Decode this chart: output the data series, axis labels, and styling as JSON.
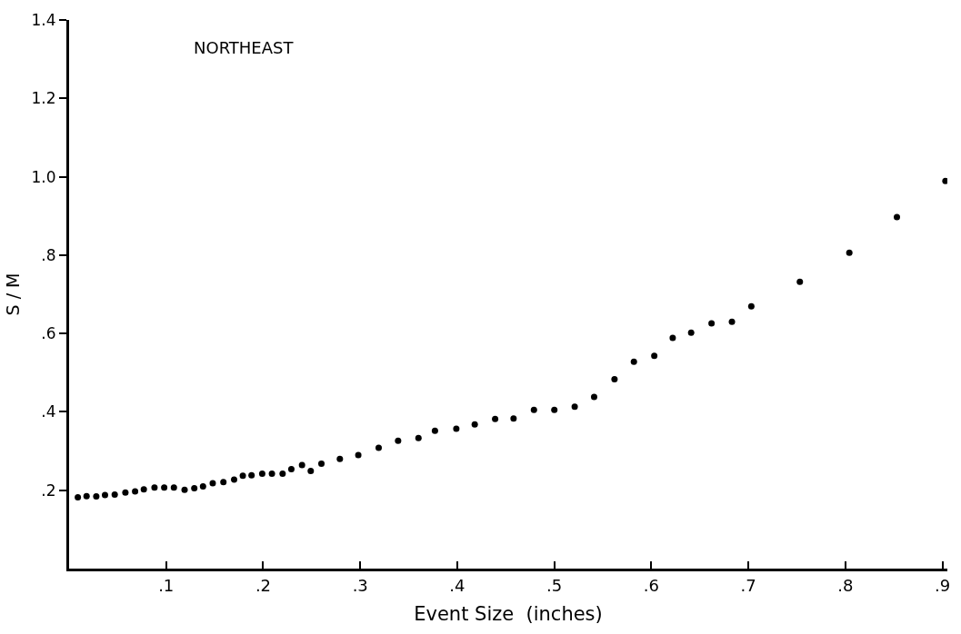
{
  "chart_data": {
    "type": "scatter",
    "title": "NORTHEAST",
    "xlabel": "Event Size  (inches)",
    "ylabel": "S / M",
    "x": [
      0.009,
      0.018,
      0.028,
      0.037,
      0.047,
      0.058,
      0.068,
      0.077,
      0.088,
      0.098,
      0.108,
      0.119,
      0.129,
      0.138,
      0.148,
      0.159,
      0.17,
      0.179,
      0.188,
      0.199,
      0.209,
      0.22,
      0.229,
      0.24,
      0.249,
      0.26,
      0.279,
      0.298,
      0.319,
      0.339,
      0.36,
      0.377,
      0.399,
      0.418,
      0.439,
      0.458,
      0.479,
      0.5,
      0.521,
      0.541,
      0.562,
      0.582,
      0.603,
      0.622,
      0.641,
      0.662,
      0.683,
      0.703,
      0.753,
      0.804,
      0.853,
      0.903
    ],
    "series": [
      {
        "color": "#000000",
        "values": [
          0.182,
          0.185,
          0.184,
          0.188,
          0.189,
          0.194,
          0.197,
          0.202,
          0.207,
          0.207,
          0.207,
          0.201,
          0.205,
          0.21,
          0.218,
          0.221,
          0.227,
          0.237,
          0.238,
          0.242,
          0.242,
          0.242,
          0.254,
          0.264,
          0.249,
          0.268,
          0.28,
          0.29,
          0.308,
          0.326,
          0.333,
          0.352,
          0.357,
          0.368,
          0.382,
          0.383,
          0.405,
          0.405,
          0.413,
          0.438,
          0.483,
          0.528,
          0.543,
          0.589,
          0.602,
          0.626,
          0.63,
          0.669,
          0.732,
          0.806,
          0.897,
          0.989
        ]
      }
    ],
    "xlim": [
      0,
      0.905
    ],
    "ylim": [
      0,
      1.4
    ],
    "xticks": [
      {
        "value": 0.1,
        "label": ".1"
      },
      {
        "value": 0.2,
        "label": ".2"
      },
      {
        "value": 0.3,
        "label": ".3"
      },
      {
        "value": 0.4,
        "label": ".4"
      },
      {
        "value": 0.5,
        "label": ".5"
      },
      {
        "value": 0.6,
        "label": ".6"
      },
      {
        "value": 0.7,
        "label": ".7"
      },
      {
        "value": 0.8,
        "label": ".8"
      },
      {
        "value": 0.9,
        "label": ".9"
      }
    ],
    "yticks": [
      {
        "value": 0.2,
        "label": ".2"
      },
      {
        "value": 0.4,
        "label": ".4"
      },
      {
        "value": 0.6,
        "label": ".6"
      },
      {
        "value": 0.8,
        "label": ".8"
      },
      {
        "value": 1.0,
        "label": "1.0"
      },
      {
        "value": 1.2,
        "label": "1.2"
      },
      {
        "value": 1.4,
        "label": "1.4"
      }
    ],
    "marker": "circle"
  }
}
